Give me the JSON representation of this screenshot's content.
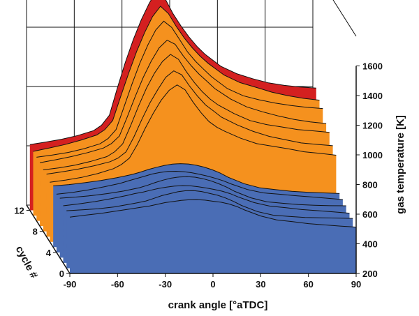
{
  "chart_data": {
    "type": "area",
    "subtype": "3d-waterfall",
    "xlabel": "crank angle [°aTDC]",
    "ylabel": "gas temperature [K]",
    "zlabel": "cycle #",
    "x_ticks": [
      -90,
      -60,
      -30,
      0,
      30,
      60,
      90
    ],
    "y_ticks": [
      200,
      400,
      600,
      800,
      1000,
      1200,
      1400,
      1600
    ],
    "z_ticks": [
      0,
      4,
      8,
      12
    ],
    "xlim": [
      -90,
      90
    ],
    "ylim": [
      200,
      1800
    ],
    "zlim": [
      0,
      13
    ],
    "grid": true,
    "x": [
      -90,
      -80,
      -70,
      -60,
      -50,
      -45,
      -40,
      -35,
      -30,
      -25,
      -20,
      -15,
      -10,
      -5,
      0,
      5,
      10,
      15,
      20,
      30,
      40,
      50,
      60,
      70,
      80,
      90
    ],
    "series": [
      {
        "cycle": 0,
        "color": "#4a6db5",
        "values": [
          580,
          590,
          600,
          615,
          630,
          640,
          650,
          665,
          680,
          690,
          700,
          705,
          705,
          700,
          690,
          680,
          665,
          645,
          620,
          580,
          555,
          545,
          535,
          530,
          525,
          520
        ]
      },
      {
        "cycle": 1,
        "color": "#4a6db5",
        "values": [
          585,
          595,
          605,
          620,
          640,
          650,
          660,
          675,
          690,
          700,
          710,
          715,
          715,
          710,
          700,
          690,
          675,
          655,
          630,
          590,
          565,
          555,
          545,
          540,
          535,
          530
        ]
      },
      {
        "cycle": 2,
        "color": "#4a6db5",
        "values": [
          590,
          600,
          612,
          628,
          648,
          660,
          670,
          685,
          700,
          712,
          722,
          728,
          728,
          722,
          712,
          700,
          685,
          665,
          640,
          600,
          575,
          565,
          555,
          550,
          545,
          540
        ]
      },
      {
        "cycle": 3,
        "color": "#4a6db5",
        "values": [
          595,
          605,
          618,
          635,
          655,
          668,
          680,
          695,
          712,
          725,
          735,
          740,
          740,
          735,
          725,
          712,
          695,
          675,
          650,
          610,
          585,
          575,
          565,
          558,
          552,
          548
        ]
      },
      {
        "cycle": 4,
        "color": "#4a6db5",
        "values": [
          600,
          610,
          625,
          642,
          662,
          676,
          690,
          705,
          722,
          735,
          745,
          750,
          750,
          745,
          735,
          722,
          705,
          685,
          660,
          620,
          595,
          585,
          575,
          568,
          562,
          556
        ]
      },
      {
        "cycle": 5,
        "color": "#4a6db5",
        "values": [
          605,
          615,
          630,
          648,
          670,
          684,
          698,
          715,
          732,
          745,
          755,
          760,
          760,
          755,
          745,
          732,
          715,
          695,
          670,
          630,
          605,
          595,
          585,
          578,
          572,
          565
        ]
      },
      {
        "cycle": 6,
        "color": "#f5911e",
        "values": [
          610,
          625,
          642,
          665,
          695,
          720,
          760,
          850,
          960,
          1060,
          1150,
          1220,
          1260,
          1230,
          1150,
          1080,
          1020,
          980,
          950,
          900,
          860,
          840,
          820,
          800,
          790,
          780
        ]
      },
      {
        "cycle": 7,
        "color": "#f5911e",
        "values": [
          615,
          630,
          648,
          672,
          702,
          730,
          775,
          880,
          1000,
          1110,
          1200,
          1280,
          1320,
          1290,
          1210,
          1140,
          1080,
          1040,
          1000,
          950,
          910,
          880,
          860,
          840,
          830,
          820
        ]
      },
      {
        "cycle": 8,
        "color": "#f5911e",
        "values": [
          620,
          636,
          655,
          680,
          710,
          740,
          790,
          910,
          1040,
          1160,
          1260,
          1340,
          1390,
          1360,
          1280,
          1210,
          1150,
          1100,
          1060,
          1000,
          950,
          920,
          900,
          880,
          870,
          860
        ]
      },
      {
        "cycle": 9,
        "color": "#f5911e",
        "values": [
          625,
          642,
          662,
          688,
          720,
          752,
          806,
          940,
          1080,
          1210,
          1320,
          1410,
          1460,
          1430,
          1350,
          1280,
          1220,
          1170,
          1120,
          1050,
          1000,
          970,
          945,
          925,
          910,
          900
        ]
      },
      {
        "cycle": 10,
        "color": "#f5911e",
        "values": [
          630,
          648,
          668,
          695,
          728,
          762,
          820,
          970,
          1120,
          1260,
          1380,
          1480,
          1540,
          1500,
          1420,
          1340,
          1280,
          1230,
          1180,
          1100,
          1050,
          1020,
          995,
          975,
          960,
          950
        ]
      },
      {
        "cycle": 11,
        "color": "#f5911e",
        "values": [
          635,
          654,
          675,
          702,
          736,
          772,
          836,
          1000,
          1160,
          1310,
          1440,
          1550,
          1620,
          1570,
          1480,
          1400,
          1330,
          1270,
          1220,
          1140,
          1090,
          1060,
          1030,
          1010,
          995,
          985
        ]
      },
      {
        "cycle": 12,
        "color": "#d42020",
        "values": [
          640,
          660,
          682,
          710,
          745,
          782,
          850,
          1030,
          1200,
          1350,
          1480,
          1590,
          1680,
          1620,
          1520,
          1440,
          1370,
          1310,
          1260,
          1180,
          1130,
          1095,
          1065,
          1045,
          1030,
          1020
        ]
      }
    ]
  }
}
